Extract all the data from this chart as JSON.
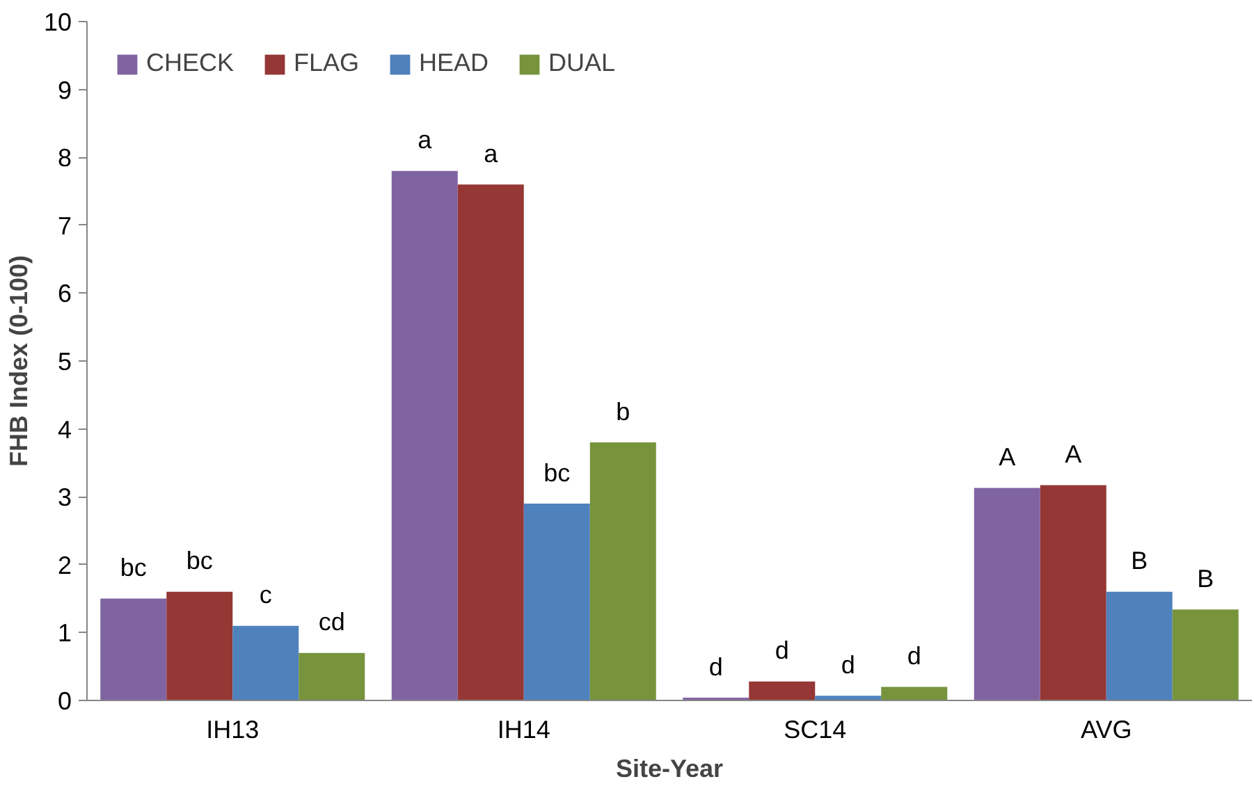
{
  "chart_data": {
    "type": "bar",
    "xlabel": "Site-Year",
    "ylabel": "FHB Index (0-100)",
    "categories": [
      "IH13",
      "IH14",
      "SC14",
      "AVG"
    ],
    "series": [
      {
        "name": "CHECK",
        "color": "#8064a2",
        "values": [
          1.5,
          7.8,
          0.04,
          3.13
        ],
        "value_labels": [
          "bc",
          "a",
          "d",
          "A"
        ]
      },
      {
        "name": "FLAG",
        "color": "#953735",
        "values": [
          1.6,
          7.6,
          0.28,
          3.17
        ],
        "value_labels": [
          "bc",
          "a",
          "d",
          "A"
        ]
      },
      {
        "name": "HEAD",
        "color": "#4f81bd",
        "values": [
          1.1,
          2.9,
          0.07,
          1.6
        ],
        "value_labels": [
          "c",
          "bc",
          "d",
          "B"
        ]
      },
      {
        "name": "DUAL",
        "color": "#77933c",
        "values": [
          0.7,
          3.8,
          0.2,
          1.34
        ],
        "value_labels": [
          "cd",
          "b",
          "d",
          "B"
        ]
      }
    ],
    "ylim": [
      0,
      10
    ],
    "yticks": [
      0,
      1,
      2,
      3,
      4,
      5,
      6,
      7,
      8,
      9,
      10
    ],
    "grid": false,
    "legend": "top left"
  }
}
